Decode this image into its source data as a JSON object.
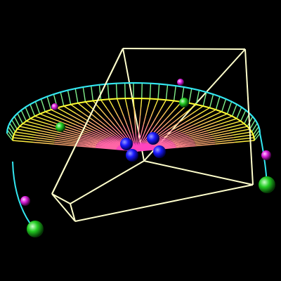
{
  "colors": {
    "background": "#000000",
    "box_edge": "#ffffcc",
    "inner_ray": "#ff33cc",
    "outer_ray": "#ffff33",
    "rim_ray": "#00e0e0",
    "mid_ring": "#ffff33",
    "outer_ring": "#33e6f0",
    "blue_atom": "#1a1aff",
    "green_atom": "#22dd22",
    "magenta_atom": "#ff22ff"
  },
  "scene": {
    "description_free": true,
    "ray_count": 46,
    "box_edge_count": 12,
    "blue_atom_count": 4,
    "green_atom_count": 4,
    "magenta_atom_count": 4
  }
}
